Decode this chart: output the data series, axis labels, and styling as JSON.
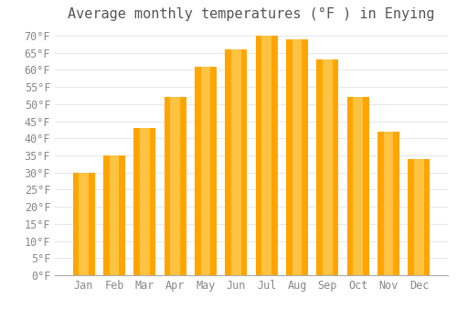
{
  "title": "Average monthly temperatures (°F ) in Enying",
  "months": [
    "Jan",
    "Feb",
    "Mar",
    "Apr",
    "May",
    "Jun",
    "Jul",
    "Aug",
    "Sep",
    "Oct",
    "Nov",
    "Dec"
  ],
  "values": [
    30,
    35,
    43,
    52,
    61,
    66,
    70,
    69,
    63,
    52,
    42,
    34
  ],
  "bar_color_bottom": "#FFA500",
  "bar_color_top": "#FFD060",
  "ylim": [
    0,
    72
  ],
  "yticks": [
    0,
    5,
    10,
    15,
    20,
    25,
    30,
    35,
    40,
    45,
    50,
    55,
    60,
    65,
    70
  ],
  "background_color": "#ffffff",
  "grid_color": "#e8e8e8",
  "title_fontsize": 11,
  "tick_fontsize": 8.5,
  "tick_color": "#888888",
  "title_color": "#555555",
  "bar_width": 0.72
}
